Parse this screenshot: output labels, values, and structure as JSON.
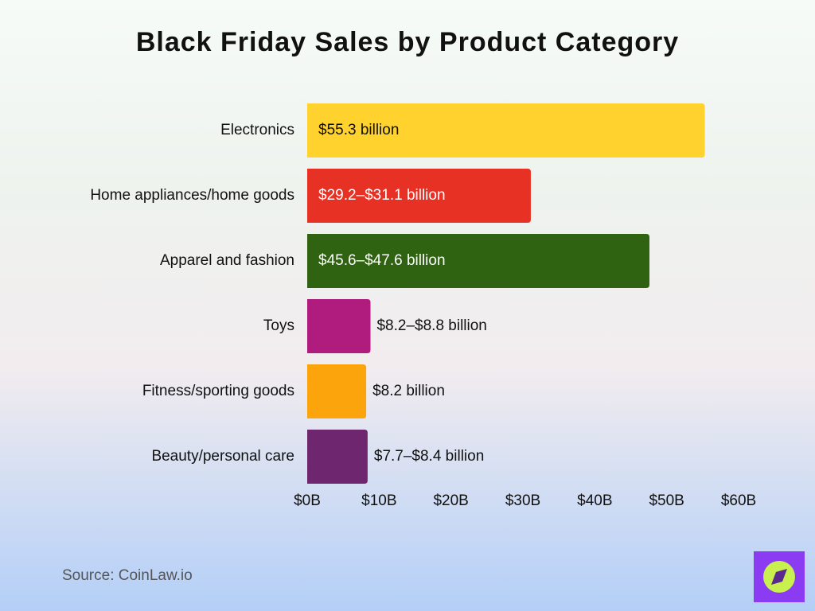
{
  "chart_data": {
    "type": "hbar",
    "title": "Black Friday Sales by Product Category",
    "categories": [
      "Electronics",
      "Home appliances/home goods",
      "Apparel and fashion",
      "Toys",
      "Fitness/sporting goods",
      "Beauty/personal care"
    ],
    "values": [
      55.3,
      31.1,
      47.6,
      8.8,
      8.2,
      8.4
    ],
    "value_labels": [
      "$55.3 billion",
      "$29.2–$31.1 billion",
      "$45.6–$47.6 billion",
      "$8.2–$8.8 billion",
      "$8.2 billion",
      "$7.7–$8.4 billion"
    ],
    "colors": [
      "#ffd22e",
      "#e83125",
      "#2f6211",
      "#b01c7e",
      "#fba40b",
      "#6e266e"
    ],
    "xlim": [
      0,
      60
    ],
    "xticks": [
      {
        "value": 0,
        "label": "$0B"
      },
      {
        "value": 10,
        "label": "$10B"
      },
      {
        "value": 20,
        "label": "$20B"
      },
      {
        "value": 30,
        "label": "$30B"
      },
      {
        "value": 40,
        "label": "$40B"
      },
      {
        "value": 50,
        "label": "$50B"
      },
      {
        "value": 60,
        "label": "$60B"
      }
    ],
    "source": "Source: CoinLaw.io"
  }
}
